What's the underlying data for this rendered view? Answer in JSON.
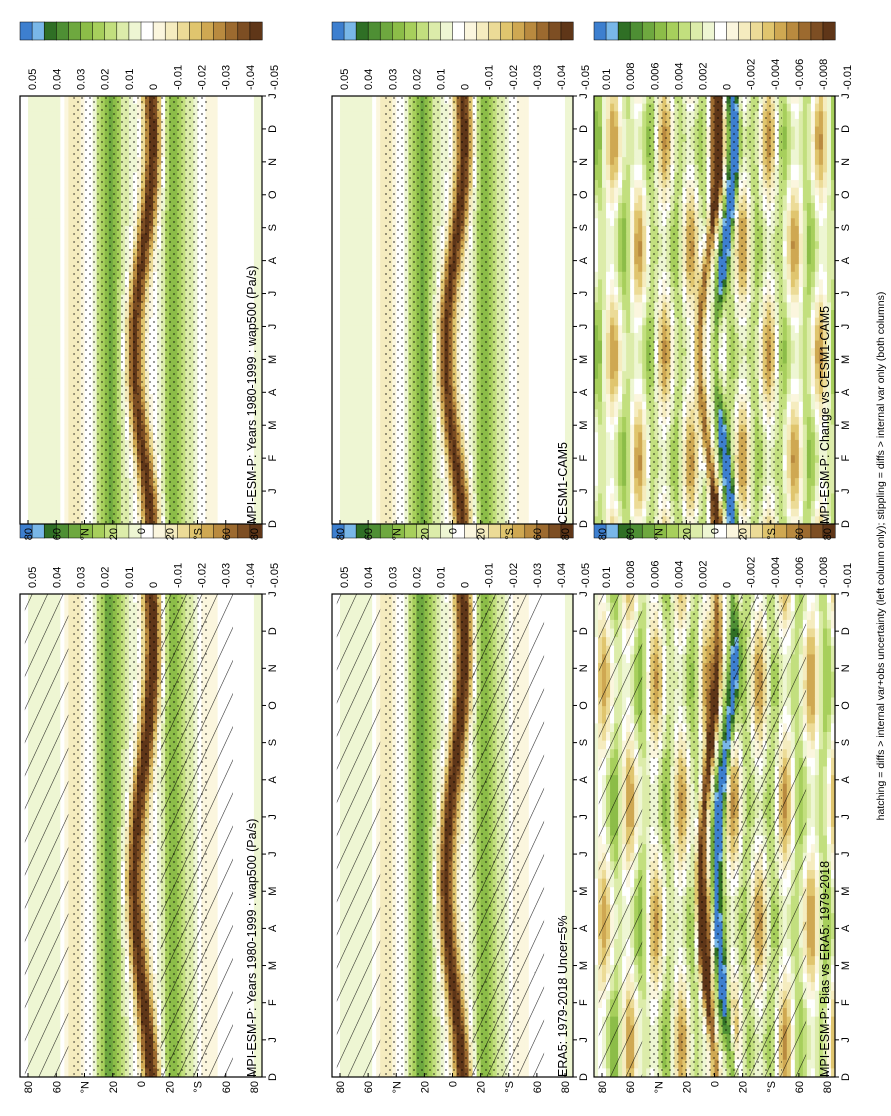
{
  "figure": {
    "footnote": "hatching = diffs > internal var+obs uncertainty (left column only); stippling = diffs > internal var only (both columns)"
  },
  "months": [
    "D",
    "J",
    "F",
    "M",
    "A",
    "M",
    "J",
    "J",
    "A",
    "S",
    "O",
    "N",
    "D",
    "J"
  ],
  "lat_ticks": [
    "80",
    "60",
    "°N",
    "20",
    "0",
    "20",
    "°S",
    "60",
    "80"
  ],
  "colorbars": {
    "clim": {
      "labels": [
        "0.05",
        "0.04",
        "0.03",
        "0.02",
        "0.01",
        "0",
        "-0.01",
        "-0.02",
        "-0.03",
        "-0.04",
        "-0.05"
      ],
      "colors": [
        "#3d7fcf",
        "#79b7e8",
        "#2f6f25",
        "#4e8f34",
        "#6ea83f",
        "#8cbd48",
        "#a7cf5c",
        "#c2df7e",
        "#dcecaa",
        "#eef6d3",
        "#ffffff",
        "#fbf6de",
        "#f5ecbf",
        "#ecdb97",
        "#e0c56e",
        "#cfa852",
        "#b98a3f",
        "#9c6a2f",
        "#7d4e23",
        "#5f3618"
      ]
    },
    "diff": {
      "labels": [
        "0.01",
        "0.008",
        "0.006",
        "0.004",
        "0.002",
        "0",
        "-0.002",
        "-0.004",
        "-0.006",
        "-0.008",
        "-0.01"
      ],
      "colors": [
        "#3d7fcf",
        "#79b7e8",
        "#2f6f25",
        "#4e8f34",
        "#6ea83f",
        "#8cbd48",
        "#a7cf5c",
        "#c2df7e",
        "#dcecaa",
        "#eef6d3",
        "#ffffff",
        "#fbf6de",
        "#f5ecbf",
        "#ecdb97",
        "#e0c56e",
        "#cfa852",
        "#b98a3f",
        "#9c6a2f",
        "#7d4e23",
        "#5f3618"
      ]
    }
  },
  "panels": {
    "p1": {
      "title": "MPI-ESM-P: Years 1980-1999 : wap500 (Pa/s)"
    },
    "p2": {
      "title": "MPI-ESM-P: Years 1980-1999 : wap500 (Pa/s)"
    },
    "p3": {
      "title": "ERA5: 1979-2018 Uncer=5%"
    },
    "p4": {
      "title": "CESM1-CAM5"
    },
    "p5": {
      "title": "MPI-ESM-P: Bias vs ERA5: 1979-2018"
    },
    "p6": {
      "title": "MPI-ESM-P: Change vs CESM1-CAM5"
    }
  },
  "chart_data": [
    {
      "type": "heatmap",
      "title": "MPI-ESM-P: Years 1980-1999 : wap500 (Pa/s)",
      "xlabel": "",
      "ylabel": "",
      "x": [
        "D",
        "J",
        "F",
        "M",
        "A",
        "M",
        "J",
        "J",
        "A",
        "S",
        "O",
        "N",
        "D",
        "J"
      ],
      "y_range": [
        -90,
        90
      ],
      "colorbar_range": [
        -0.05,
        0.05
      ],
      "hatching": true,
      "stippling": true
    },
    {
      "type": "heatmap",
      "title": "MPI-ESM-P: Years 1980-1999 : wap500 (Pa/s)",
      "xlabel": "",
      "ylabel": "",
      "x": [
        "D",
        "J",
        "F",
        "M",
        "A",
        "M",
        "J",
        "J",
        "A",
        "S",
        "O",
        "N",
        "D",
        "J"
      ],
      "y_range": [
        -90,
        90
      ],
      "colorbar_range": [
        -0.05,
        0.05
      ],
      "hatching": false,
      "stippling": true
    },
    {
      "type": "heatmap",
      "title": "ERA5: 1979-2018 Uncer=5%",
      "xlabel": "",
      "ylabel": "",
      "x": [
        "D",
        "J",
        "F",
        "M",
        "A",
        "M",
        "J",
        "J",
        "A",
        "S",
        "O",
        "N",
        "D",
        "J"
      ],
      "y_range": [
        -90,
        90
      ],
      "colorbar_range": [
        -0.05,
        0.05
      ],
      "hatching": true,
      "stippling": true
    },
    {
      "type": "heatmap",
      "title": "CESM1-CAM5",
      "xlabel": "",
      "ylabel": "",
      "x": [
        "D",
        "J",
        "F",
        "M",
        "A",
        "M",
        "J",
        "J",
        "A",
        "S",
        "O",
        "N",
        "D",
        "J"
      ],
      "y_range": [
        -90,
        90
      ],
      "colorbar_range": [
        -0.05,
        0.05
      ],
      "hatching": false,
      "stippling": true
    },
    {
      "type": "heatmap",
      "title": "MPI-ESM-P: Bias vs ERA5: 1979-2018",
      "xlabel": "",
      "ylabel": "",
      "x": [
        "D",
        "J",
        "F",
        "M",
        "A",
        "M",
        "J",
        "J",
        "A",
        "S",
        "O",
        "N",
        "D",
        "J"
      ],
      "y_range": [
        -90,
        90
      ],
      "colorbar_range": [
        -0.01,
        0.01
      ],
      "hatching": true,
      "stippling": true
    },
    {
      "type": "heatmap",
      "title": "MPI-ESM-P: Change vs CESM1-CAM5",
      "xlabel": "",
      "ylabel": "",
      "x": [
        "D",
        "J",
        "F",
        "M",
        "A",
        "M",
        "J",
        "J",
        "A",
        "S",
        "O",
        "N",
        "D",
        "J"
      ],
      "y_range": [
        -90,
        90
      ],
      "colorbar_range": [
        -0.01,
        0.01
      ],
      "hatching": false,
      "stippling": true
    }
  ]
}
